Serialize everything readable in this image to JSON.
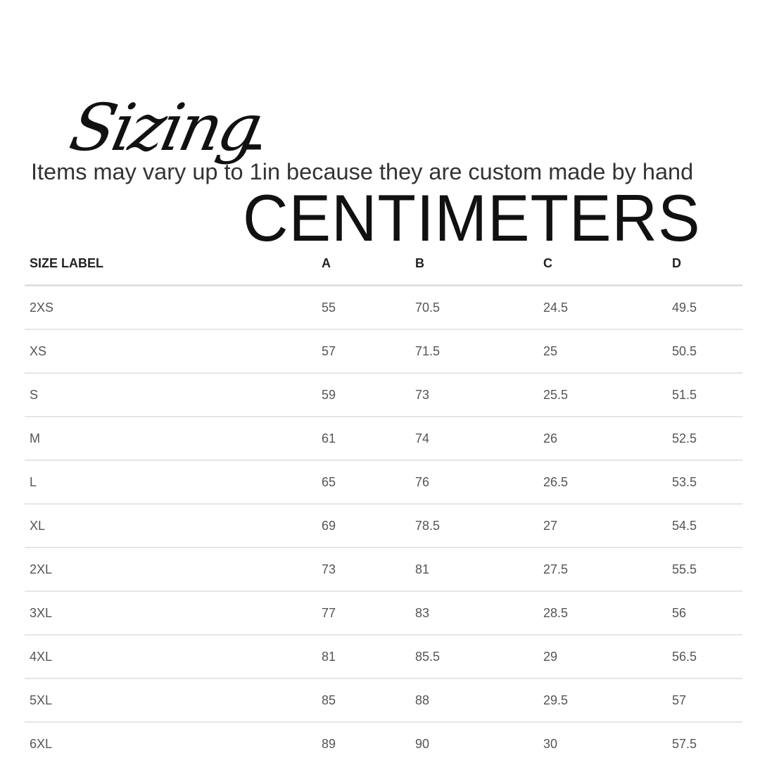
{
  "title": {
    "script": "Sizing",
    "main": "-CENTIMETERS"
  },
  "subtitle": "Items may vary up to 1in because they are custom made by hand",
  "table": {
    "headers": [
      "SIZE LABEL",
      "A",
      "B",
      "C",
      "D"
    ],
    "rows": [
      [
        "2XS",
        "55",
        "70.5",
        "24.5",
        "49.5"
      ],
      [
        "XS",
        "57",
        "71.5",
        "25",
        "50.5"
      ],
      [
        "S",
        "59",
        "73",
        "25.5",
        "51.5"
      ],
      [
        "M",
        "61",
        "74",
        "26",
        "52.5"
      ],
      [
        "L",
        "65",
        "76",
        "26.5",
        "53.5"
      ],
      [
        "XL",
        "69",
        "78.5",
        "27",
        "54.5"
      ],
      [
        "2XL",
        "73",
        "81",
        "27.5",
        "55.5"
      ],
      [
        "3XL",
        "77",
        "83",
        "28.5",
        "56"
      ],
      [
        "4XL",
        "81",
        "85.5",
        "29",
        "56.5"
      ],
      [
        "5XL",
        "85",
        "88",
        "29.5",
        "57"
      ],
      [
        "6XL",
        "89",
        "90",
        "30",
        "57.5"
      ]
    ]
  }
}
